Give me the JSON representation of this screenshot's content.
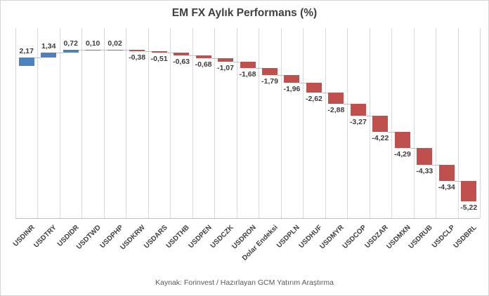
{
  "chart": {
    "footer": "Kaynak: Forinvest / Hazırlayan GCM Yatırım Araştırma"
  },
  "chart_data": {
    "type": "bar",
    "subtype": "waterfall",
    "title": "EM FX Aylık Performans (%)",
    "xlabel": "",
    "ylabel": "",
    "categories": [
      "USDINR",
      "USDTRY",
      "USDIDR",
      "USDTWD",
      "USDPHP",
      "USDKRW",
      "USDARS",
      "USDTHB",
      "USDPEN",
      "USDCZK",
      "USDRON",
      "Dolar Endeksi",
      "USDPLN",
      "USDHUF",
      "USDMYR",
      "USDCOP",
      "USDZAR",
      "USDMXN",
      "USDRUB",
      "USDCLP",
      "USDBRL"
    ],
    "values": [
      2.17,
      1.34,
      0.72,
      0.1,
      0.02,
      -0.38,
      -0.51,
      -0.63,
      -0.68,
      -1.07,
      -1.68,
      -1.79,
      -1.96,
      -2.62,
      -2.88,
      -3.27,
      -4.22,
      -4.29,
      -4.33,
      -4.34,
      -5.22
    ],
    "value_labels": [
      "2,17",
      "1,34",
      "0,72",
      "0,10",
      "0,02",
      "-0,38",
      "-0,51",
      "-0,63",
      "-0,68",
      "-1,07",
      "-1,68",
      "-1,79",
      "-1,96",
      "-2,62",
      "-2,88",
      "-3,27",
      "-4,22",
      "-4,29",
      "-4,33",
      "-4,34",
      "-5,22"
    ],
    "cumulative": [
      2.17,
      3.51,
      4.23,
      4.33,
      4.35,
      3.97,
      3.46,
      2.83,
      2.15,
      1.08,
      -0.6,
      -2.39,
      -4.35,
      -6.97,
      -9.85,
      -13.12,
      -17.34,
      -21.63,
      -25.96,
      -30.3,
      -35.52
    ],
    "ylim": [
      -40,
      10
    ],
    "grid": "vertical-only",
    "legend": "none",
    "colors": {
      "positive": "#4f81bd",
      "negative": "#c0504d",
      "gridline": "#d9d9d9",
      "axis_line": "#bfbfbf",
      "connector": "#bfbfbf",
      "value_text": "#3d3d3d",
      "category_text": "#404040",
      "title_text": "#404040",
      "footer_text": "#595959"
    }
  }
}
